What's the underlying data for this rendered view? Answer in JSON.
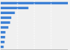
{
  "chart_data": {
    "type": "bar",
    "orientation": "horizontal",
    "values": [
      11.4,
      4.7,
      2.4,
      1.8,
      1.6,
      1.3,
      0.8,
      0.75,
      0.65,
      0.5
    ],
    "color": "#3a7fd5",
    "xlim": [
      0,
      11.4
    ],
    "xticks": [
      2.85,
      5.7,
      8.55
    ],
    "grid": true,
    "tick_labels": false
  }
}
